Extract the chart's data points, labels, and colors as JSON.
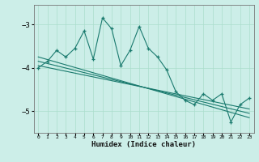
{
  "xlabel": "Humidex (Indice chaleur)",
  "ylabel": "",
  "background_color": "#cceee8",
  "grid_color": "#aaddcc",
  "line_color": "#1a7a6e",
  "xlim": [
    -0.5,
    23.5
  ],
  "ylim": [
    -5.5,
    -2.55
  ],
  "yticks": [
    -5,
    -4,
    -3
  ],
  "xticks": [
    0,
    1,
    2,
    3,
    4,
    5,
    6,
    7,
    8,
    9,
    10,
    11,
    12,
    13,
    14,
    15,
    16,
    17,
    18,
    19,
    20,
    21,
    22,
    23
  ],
  "main_x": [
    0,
    1,
    2,
    3,
    4,
    5,
    6,
    7,
    8,
    9,
    10,
    11,
    12,
    13,
    14,
    15,
    16,
    17,
    18,
    19,
    20,
    21,
    22,
    23
  ],
  "main_y": [
    -4.0,
    -3.85,
    -3.6,
    -3.75,
    -3.55,
    -3.15,
    -3.8,
    -2.85,
    -3.1,
    -3.95,
    -3.6,
    -3.05,
    -3.55,
    -3.75,
    -4.05,
    -4.55,
    -4.75,
    -4.85,
    -4.6,
    -4.75,
    -4.6,
    -5.25,
    -4.85,
    -4.7
  ],
  "reg_lines": [
    {
      "x": [
        0,
        23
      ],
      "y": [
        -3.95,
        -4.95
      ]
    },
    {
      "x": [
        0,
        23
      ],
      "y": [
        -3.85,
        -5.05
      ]
    },
    {
      "x": [
        0,
        23
      ],
      "y": [
        -3.75,
        -5.15
      ]
    }
  ]
}
